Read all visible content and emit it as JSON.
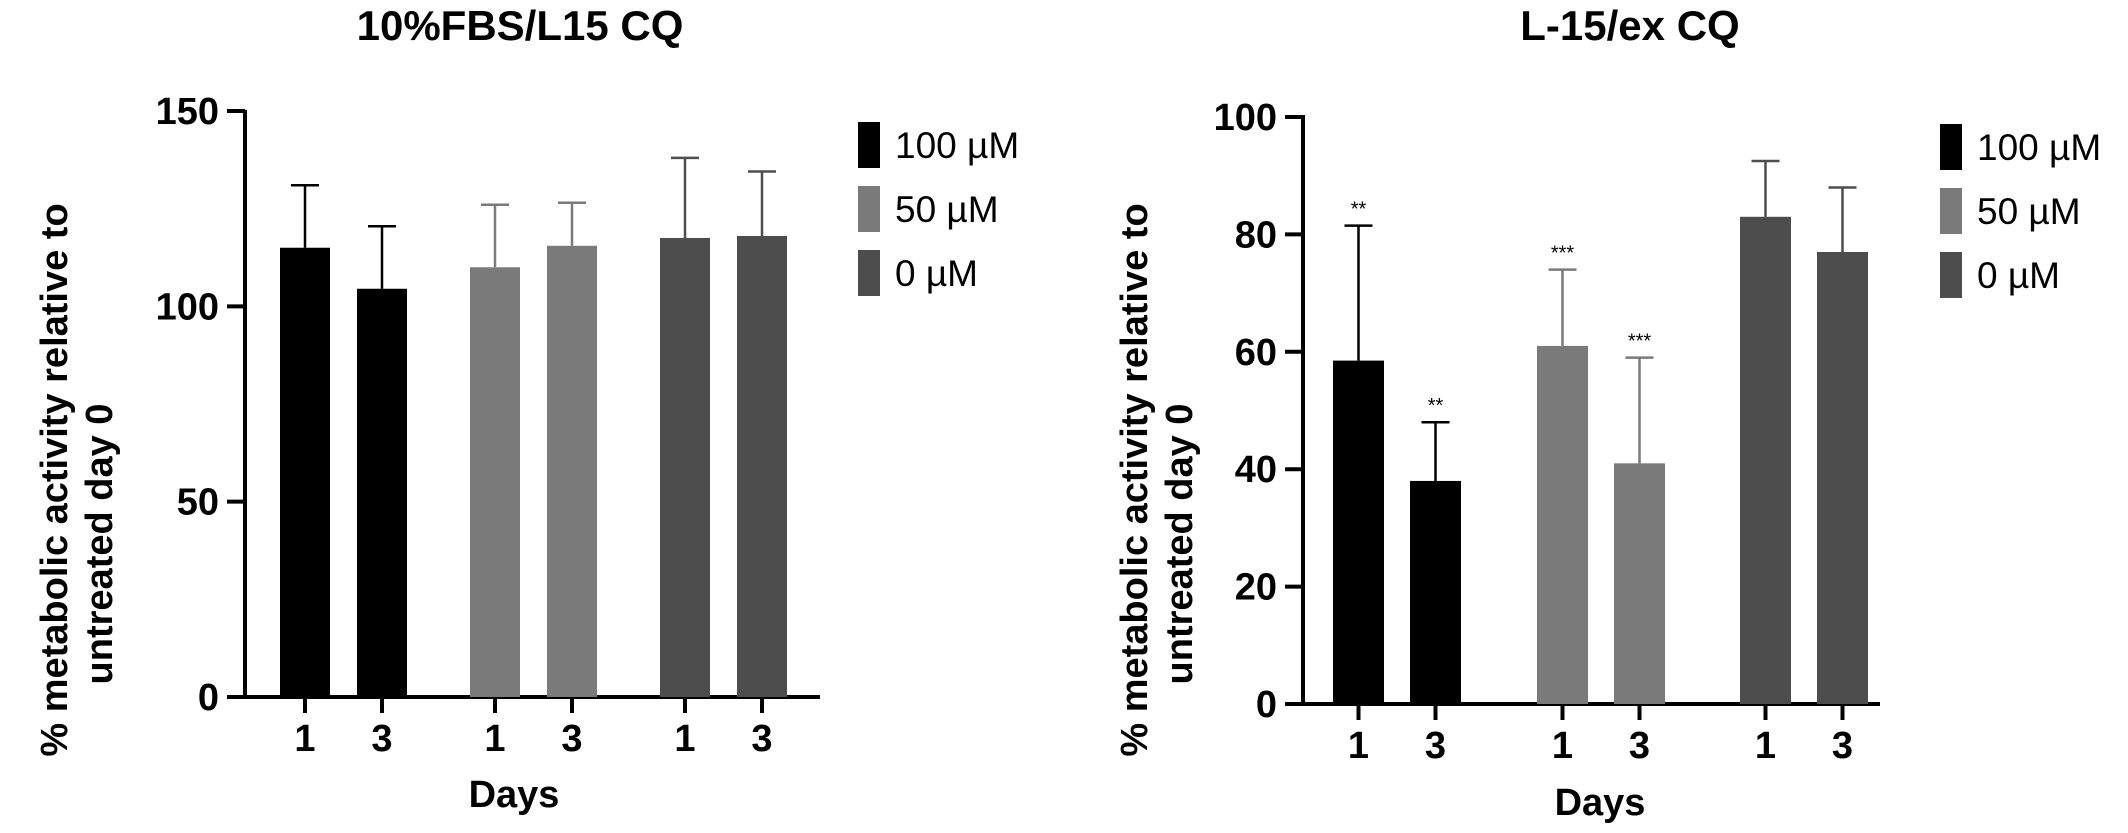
{
  "chart_data": [
    {
      "type": "bar",
      "title": "10%FBS/L15 CQ",
      "xlabel": "Days",
      "ylabel_line1": "% metabolic activity relative to",
      "ylabel_line2": "untreated day 0",
      "ylim": [
        0,
        150
      ],
      "yticks": [
        "0",
        "50",
        "100",
        "150"
      ],
      "ytick_values": [
        0,
        50,
        100,
        150
      ],
      "categories": [
        "1",
        "3"
      ],
      "colors": {
        "100 µM": "#000000",
        "50 µM": "#7a7a7a",
        "0 µM": "#4d4d4d"
      },
      "series": [
        {
          "name": "100 µM",
          "values": [
            115,
            104.5
          ],
          "errors": [
            16,
            16
          ]
        },
        {
          "name": "50 µM",
          "values": [
            110,
            115.5
          ],
          "errors": [
            16,
            11
          ]
        },
        {
          "name": "0 µM",
          "values": [
            117.5,
            118
          ],
          "errors": [
            20.5,
            16.5
          ]
        }
      ],
      "annotations": [
        [
          "",
          ""
        ],
        [
          "",
          ""
        ],
        [
          "",
          ""
        ]
      ],
      "legend": [
        "100 µM",
        "50 µM",
        "0 µM"
      ],
      "legend_position": "right"
    },
    {
      "type": "bar",
      "title": "L-15/ex CQ",
      "xlabel": "Days",
      "ylabel_line1": "% metabolic activity relative to",
      "ylabel_line2": "untreated day 0",
      "ylim": [
        0,
        100
      ],
      "yticks": [
        "0",
        "20",
        "40",
        "60",
        "80",
        "100"
      ],
      "ytick_values": [
        0,
        20,
        40,
        60,
        80,
        100
      ],
      "categories": [
        "1",
        "3"
      ],
      "colors": {
        "100 µM": "#000000",
        "50 µM": "#7a7a7a",
        "0 µM": "#4d4d4d"
      },
      "series": [
        {
          "name": "100 µM",
          "values": [
            58.5,
            38
          ],
          "errors": [
            23,
            10
          ]
        },
        {
          "name": "50 µM",
          "values": [
            61,
            41
          ],
          "errors": [
            13,
            18
          ]
        },
        {
          "name": "0 µM",
          "values": [
            83,
            77
          ],
          "errors": [
            9.5,
            11
          ]
        }
      ],
      "annotations": [
        [
          "**",
          "**"
        ],
        [
          "***",
          "***"
        ],
        [
          "",
          ""
        ]
      ],
      "legend": [
        "100 µM",
        "50 µM",
        "0 µM"
      ],
      "legend_position": "right"
    }
  ]
}
